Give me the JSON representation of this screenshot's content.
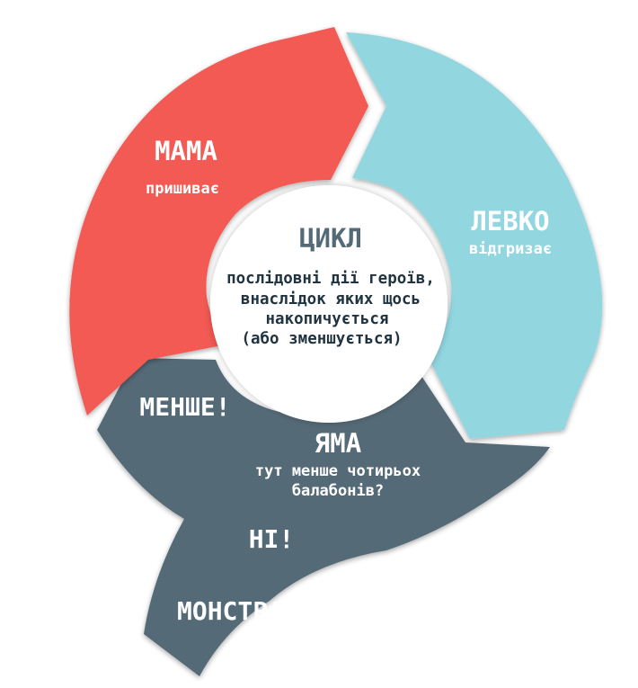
{
  "diagram": {
    "colors": {
      "mama": "#f25a52",
      "levko": "#92d6e0",
      "yama": "#546a77",
      "center": "#ffffff",
      "center_title": "#546a77",
      "center_text": "#1f3340"
    },
    "segments": {
      "mama": {
        "title": "МАМА",
        "subtitle": "пришиває"
      },
      "levko": {
        "title": "ЛЕВКО",
        "subtitle": "відгризає"
      },
      "yama": {
        "title": "ЯМА",
        "subtitle_lines": [
          "тут менше чотирьох",
          "балабонів?"
        ]
      }
    },
    "center": {
      "title": "ЦИКЛ",
      "lines": [
        "послідовні дії героїв,",
        "внаслідок яких щось",
        "накопичується",
        "(або зменшується)"
      ]
    },
    "shouts": {
      "less": "МЕНШЕ!",
      "no": "НІ!",
      "monster": "МОНСТР!"
    }
  }
}
